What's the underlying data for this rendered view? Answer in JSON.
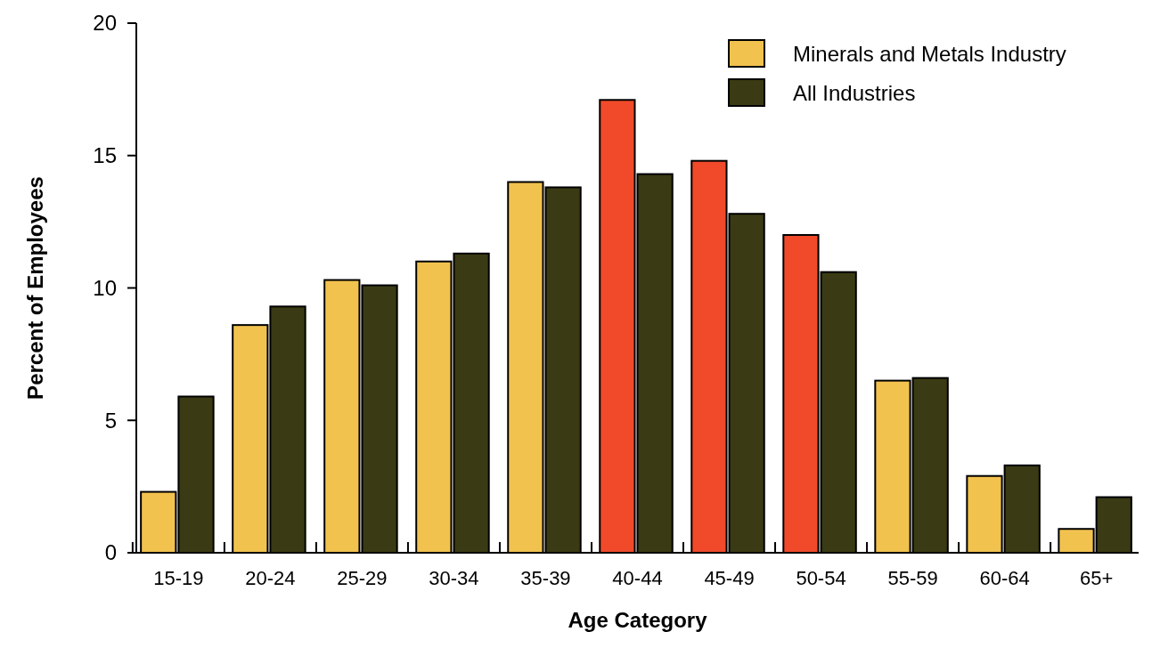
{
  "chart_data": {
    "type": "bar",
    "xlabel": "Age Category",
    "ylabel": "Percent of Employees",
    "categories": [
      "15-19",
      "20-24",
      "25-29",
      "30-34",
      "35-39",
      "40-44",
      "45-49",
      "50-54",
      "55-59",
      "60-64",
      "65+"
    ],
    "series": [
      {
        "name": "Minerals and Metals Industry",
        "color": "#f2c24f",
        "colors": [
          "#f2c24f",
          "#f2c24f",
          "#f2c24f",
          "#f2c24f",
          "#f2c24f",
          "#f04a2a",
          "#f04a2a",
          "#f04a2a",
          "#f2c24f",
          "#f2c24f",
          "#f2c24f"
        ],
        "values": [
          2.3,
          8.6,
          10.3,
          11.0,
          14.0,
          17.1,
          14.8,
          12.0,
          6.5,
          2.9,
          0.9
        ]
      },
      {
        "name": "All Industries",
        "color": "#3a3a14",
        "values": [
          5.9,
          9.3,
          10.1,
          11.3,
          13.8,
          14.3,
          12.8,
          10.6,
          6.6,
          3.3,
          2.1
        ]
      }
    ],
    "ylim": [
      0,
      20
    ],
    "yticks": [
      0,
      5,
      10,
      15,
      20
    ],
    "grid": false,
    "legend": "top right"
  }
}
